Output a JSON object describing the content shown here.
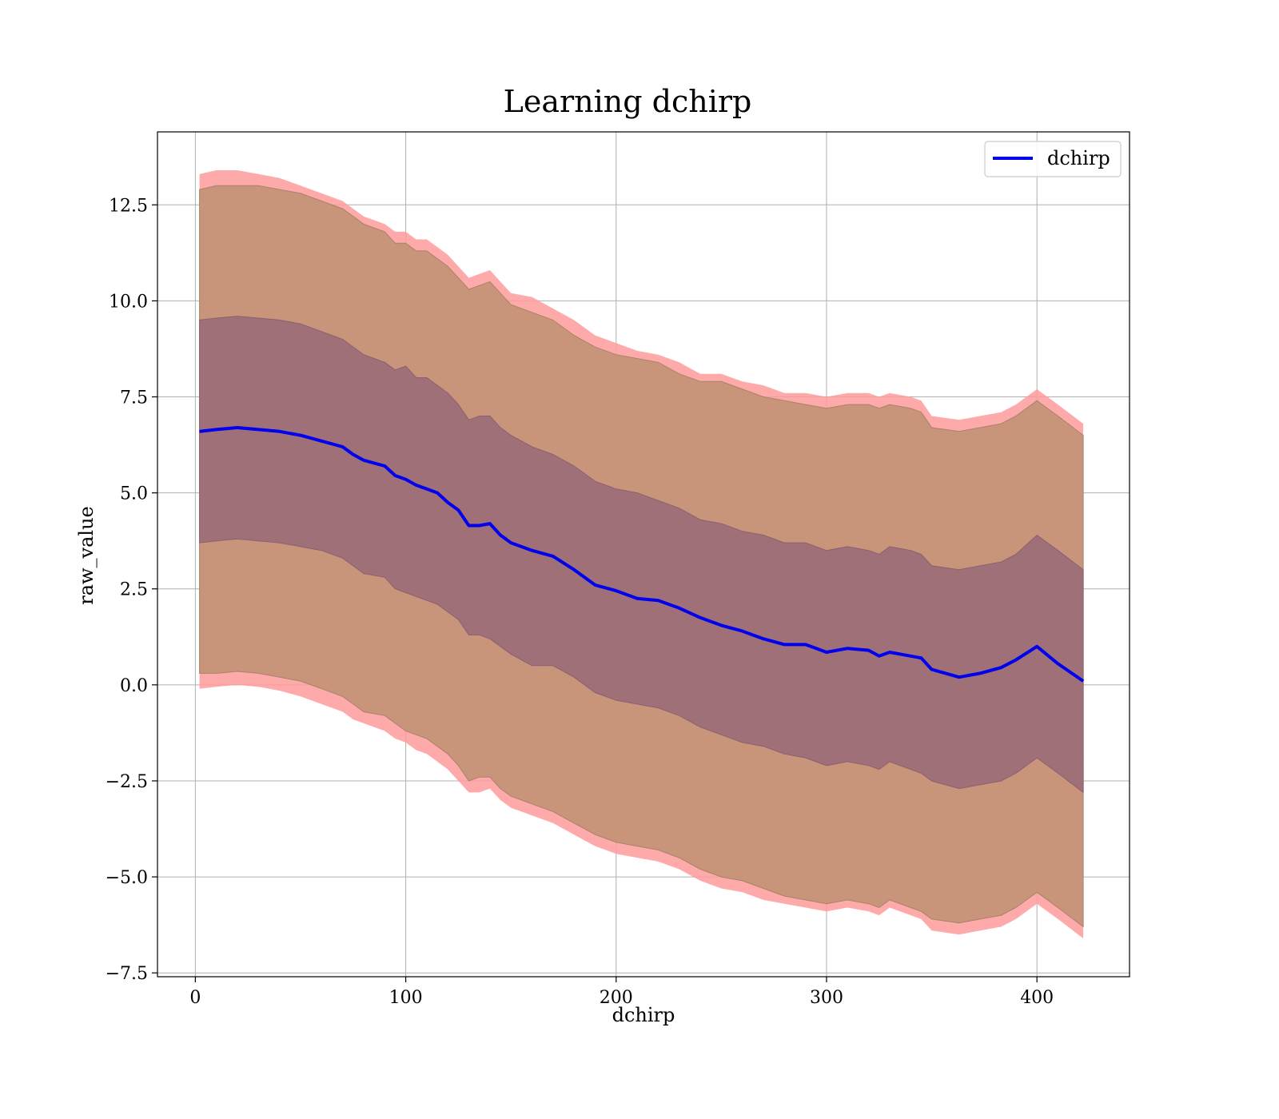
{
  "chart_data": {
    "type": "line",
    "title": "Learning dchirp",
    "xlabel": "dchirp",
    "ylabel": "raw_value",
    "xlim": [
      -18,
      444
    ],
    "ylim": [
      -7.6,
      14.4
    ],
    "xticks": [
      0,
      100,
      200,
      300,
      400
    ],
    "xtick_labels": [
      "0",
      "100",
      "200",
      "300",
      "400"
    ],
    "yticks": [
      -7.5,
      -5.0,
      -2.5,
      0.0,
      2.5,
      5.0,
      7.5,
      10.0,
      12.5
    ],
    "ytick_labels": [
      "−7.5",
      "−5.0",
      "−2.5",
      "0.0",
      "2.5",
      "5.0",
      "7.5",
      "10.0",
      "12.5"
    ],
    "grid": true,
    "legend": {
      "placement": "top-right",
      "entries": [
        "dchirp"
      ]
    },
    "colors": {
      "line": "#0000ee",
      "outer_band": "#ff9b9b",
      "middle_band": "#c8957a",
      "inner_band": "#a07078",
      "grid": "#b0b0b0"
    },
    "series": [
      {
        "name": "dchirp",
        "x": [
          2,
          10,
          20,
          30,
          40,
          50,
          60,
          70,
          75,
          80,
          90,
          95,
          100,
          105,
          110,
          115,
          120,
          125,
          130,
          135,
          140,
          145,
          150,
          160,
          170,
          180,
          190,
          200,
          210,
          220,
          230,
          240,
          250,
          260,
          270,
          280,
          290,
          300,
          310,
          320,
          325,
          330,
          340,
          345,
          350,
          363,
          373,
          383,
          390,
          400,
          410,
          422
        ],
        "y": [
          6.6,
          6.65,
          6.7,
          6.65,
          6.6,
          6.5,
          6.35,
          6.2,
          6.0,
          5.85,
          5.7,
          5.45,
          5.35,
          5.2,
          5.1,
          5.0,
          4.75,
          4.55,
          4.15,
          4.15,
          4.2,
          3.9,
          3.7,
          3.5,
          3.35,
          3.0,
          2.6,
          2.45,
          2.25,
          2.2,
          2.0,
          1.75,
          1.55,
          1.4,
          1.2,
          1.05,
          1.05,
          0.85,
          0.95,
          0.9,
          0.75,
          0.85,
          0.75,
          0.7,
          0.4,
          0.2,
          0.3,
          0.45,
          0.65,
          1.0,
          0.55,
          0.1
        ],
        "bands": {
          "outer_upper": [
            13.3,
            13.4,
            13.4,
            13.3,
            13.2,
            13.0,
            12.8,
            12.6,
            12.4,
            12.2,
            12.0,
            11.8,
            11.8,
            11.6,
            11.6,
            11.4,
            11.2,
            10.9,
            10.6,
            10.7,
            10.8,
            10.5,
            10.2,
            10.1,
            9.8,
            9.5,
            9.1,
            8.9,
            8.7,
            8.6,
            8.4,
            8.1,
            8.1,
            7.9,
            7.8,
            7.6,
            7.6,
            7.5,
            7.6,
            7.6,
            7.5,
            7.6,
            7.5,
            7.4,
            7.0,
            6.9,
            7.0,
            7.1,
            7.3,
            7.7,
            7.3,
            6.8
          ],
          "middle_upper": [
            12.9,
            13.0,
            13.0,
            13.0,
            12.9,
            12.8,
            12.6,
            12.4,
            12.2,
            12.0,
            11.8,
            11.5,
            11.5,
            11.3,
            11.3,
            11.1,
            10.9,
            10.6,
            10.3,
            10.4,
            10.5,
            10.2,
            9.9,
            9.7,
            9.5,
            9.1,
            8.8,
            8.6,
            8.5,
            8.4,
            8.1,
            7.9,
            7.9,
            7.7,
            7.5,
            7.4,
            7.3,
            7.2,
            7.3,
            7.3,
            7.2,
            7.3,
            7.2,
            7.1,
            6.7,
            6.6,
            6.7,
            6.8,
            7.0,
            7.4,
            7.0,
            6.5
          ],
          "inner_upper": [
            9.5,
            9.55,
            9.6,
            9.55,
            9.5,
            9.4,
            9.2,
            9.0,
            8.8,
            8.6,
            8.4,
            8.2,
            8.3,
            8.0,
            8.0,
            7.8,
            7.6,
            7.3,
            6.9,
            7.0,
            7.0,
            6.7,
            6.5,
            6.2,
            6.0,
            5.7,
            5.3,
            5.1,
            5.0,
            4.8,
            4.6,
            4.3,
            4.2,
            4.0,
            3.9,
            3.7,
            3.7,
            3.5,
            3.6,
            3.5,
            3.4,
            3.6,
            3.5,
            3.4,
            3.1,
            3.0,
            3.1,
            3.2,
            3.4,
            3.9,
            3.5,
            3.0
          ],
          "inner_lower": [
            3.7,
            3.75,
            3.8,
            3.75,
            3.7,
            3.6,
            3.5,
            3.3,
            3.1,
            2.9,
            2.8,
            2.5,
            2.4,
            2.3,
            2.2,
            2.1,
            1.9,
            1.7,
            1.3,
            1.3,
            1.2,
            1.0,
            0.8,
            0.5,
            0.5,
            0.2,
            -0.2,
            -0.4,
            -0.5,
            -0.6,
            -0.8,
            -1.1,
            -1.3,
            -1.5,
            -1.6,
            -1.8,
            -1.9,
            -2.1,
            -2.0,
            -2.1,
            -2.2,
            -2.0,
            -2.2,
            -2.3,
            -2.5,
            -2.7,
            -2.6,
            -2.5,
            -2.3,
            -1.9,
            -2.3,
            -2.8
          ],
          "middle_lower": [
            0.3,
            0.3,
            0.35,
            0.3,
            0.2,
            0.1,
            -0.1,
            -0.3,
            -0.5,
            -0.7,
            -0.8,
            -1.0,
            -1.2,
            -1.3,
            -1.4,
            -1.6,
            -1.8,
            -2.1,
            -2.5,
            -2.4,
            -2.4,
            -2.7,
            -2.9,
            -3.1,
            -3.3,
            -3.6,
            -3.9,
            -4.1,
            -4.2,
            -4.3,
            -4.5,
            -4.8,
            -5.0,
            -5.1,
            -5.3,
            -5.5,
            -5.6,
            -5.7,
            -5.6,
            -5.7,
            -5.8,
            -5.6,
            -5.8,
            -5.9,
            -6.1,
            -6.2,
            -6.1,
            -6.0,
            -5.8,
            -5.4,
            -5.8,
            -6.3
          ],
          "outer_lower": [
            -0.1,
            -0.05,
            0.0,
            -0.05,
            -0.15,
            -0.3,
            -0.5,
            -0.7,
            -0.9,
            -1.0,
            -1.2,
            -1.4,
            -1.5,
            -1.7,
            -1.8,
            -2.0,
            -2.2,
            -2.5,
            -2.8,
            -2.8,
            -2.7,
            -3.0,
            -3.2,
            -3.4,
            -3.6,
            -3.9,
            -4.2,
            -4.4,
            -4.5,
            -4.6,
            -4.8,
            -5.1,
            -5.3,
            -5.4,
            -5.6,
            -5.7,
            -5.8,
            -5.9,
            -5.8,
            -5.9,
            -6.0,
            -5.8,
            -6.0,
            -6.1,
            -6.4,
            -6.5,
            -6.4,
            -6.3,
            -6.1,
            -5.7,
            -6.1,
            -6.6
          ]
        }
      }
    ]
  }
}
